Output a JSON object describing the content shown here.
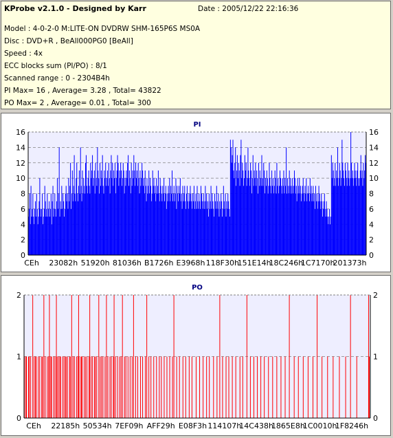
{
  "window": {
    "title": "KProbe v2.1.0 - Designed by Karr",
    "date_text": "Date : 2005/12/22 22:16:36"
  },
  "info_lines": [
    "Model : 4-0-2-0 M:LITE-ON DVDRW SHM-165P6S MS0A",
    "Disc : DVD+R , BeAll000PG0 [BeAll]",
    "Speed : 4x",
    "ECC blocks sum (PI/PO) : 8/1",
    "Scanned range : 0 - 2304B4h",
    "PI Max= 16 , Average= 3.28 , Total= 43822",
    "PO Max= 2 , Average= 0.01 , Total= 300"
  ],
  "colors": {
    "pi_bar": "#0000ff",
    "po_bar": "#ff0000",
    "plot_bg": "#eeeeff",
    "title_color": "#000080"
  },
  "chart_data": [
    {
      "type": "bar",
      "title": "PI",
      "ylim": [
        0,
        16
      ],
      "yticks": [
        0,
        2,
        4,
        6,
        8,
        10,
        12,
        14,
        16
      ],
      "xtick_labels": [
        "CEh",
        "23082h",
        "51920h",
        "81036h",
        "B1726h",
        "E3968h",
        "118F30h",
        "151E14h",
        "18C246h",
        "1C7170h",
        "201373h"
      ],
      "grid": true,
      "legend": "none",
      "values": [
        5,
        6,
        8,
        4,
        9,
        5,
        6,
        8,
        5,
        4,
        6,
        7,
        5,
        8,
        6,
        4,
        5,
        7,
        10,
        6,
        5,
        6,
        8,
        4,
        5,
        6,
        9,
        7,
        5,
        6,
        8,
        5,
        6,
        7,
        5,
        6,
        8,
        4,
        7,
        9,
        5,
        6,
        8,
        6,
        5,
        7,
        10,
        6,
        8,
        14,
        5,
        7,
        6,
        9,
        6,
        8,
        7,
        5,
        6,
        8,
        9,
        7,
        8,
        6,
        10,
        7,
        9,
        12,
        6,
        8,
        11,
        7,
        9,
        13,
        8,
        7,
        10,
        12,
        8,
        7,
        9,
        11,
        8,
        14,
        9,
        7,
        11,
        8,
        10,
        9,
        8,
        12,
        13,
        9,
        8,
        10,
        11,
        9,
        8,
        12,
        10,
        11,
        13,
        9,
        10,
        11,
        8,
        12,
        10,
        9,
        14,
        11,
        10,
        8,
        12,
        9,
        11,
        10,
        13,
        9,
        8,
        11,
        10,
        12,
        9,
        10,
        11,
        9,
        12,
        10,
        8,
        11,
        13,
        10,
        12,
        9,
        11,
        10,
        12,
        8,
        10,
        11,
        13,
        12,
        9,
        11,
        10,
        12,
        11,
        9,
        10,
        12,
        11,
        8,
        10,
        9,
        11,
        10,
        12,
        13,
        9,
        11,
        10,
        8,
        12,
        9,
        11,
        10,
        13,
        11,
        9,
        12,
        10,
        11,
        9,
        12,
        10,
        8,
        11,
        9,
        10,
        12,
        11,
        9,
        10,
        8,
        11,
        9,
        7,
        10,
        8,
        9,
        11,
        8,
        10,
        9,
        7,
        8,
        11,
        9,
        10,
        8,
        9,
        7,
        10,
        8,
        9,
        11,
        8,
        7,
        10,
        9,
        8,
        7,
        9,
        8,
        10,
        7,
        8,
        9,
        6,
        8,
        7,
        9,
        8,
        10,
        7,
        9,
        8,
        11,
        7,
        8,
        9,
        7,
        8,
        10,
        6,
        9,
        8,
        7,
        9,
        8,
        10,
        7,
        8,
        6,
        9,
        7,
        8,
        9,
        7,
        6,
        8,
        9,
        7,
        6,
        8,
        7,
        9,
        8,
        7,
        6,
        8,
        7,
        9,
        6,
        7,
        8,
        6,
        9,
        7,
        6,
        8,
        7,
        6,
        9,
        8,
        7,
        6,
        8,
        7,
        6,
        9,
        7,
        8,
        6,
        7,
        5,
        8,
        6,
        7,
        9,
        6,
        8,
        7,
        6,
        5,
        8,
        7,
        6,
        9,
        7,
        6,
        8,
        5,
        7,
        6,
        8,
        7,
        5,
        6,
        9,
        7,
        6,
        8,
        5,
        7,
        6,
        8,
        7,
        6,
        5,
        15,
        14,
        12,
        13,
        15,
        11,
        10,
        12,
        14,
        9,
        11,
        13,
        10,
        12,
        11,
        9,
        13,
        15,
        10,
        12,
        11,
        9,
        10,
        13,
        11,
        12,
        9,
        10,
        14,
        11,
        10,
        9,
        12,
        11,
        8,
        10,
        13,
        9,
        11,
        10,
        12,
        9,
        11,
        10,
        8,
        12,
        9,
        11,
        10,
        9,
        13,
        10,
        9,
        12,
        11,
        8,
        10,
        9,
        11,
        10,
        8,
        9,
        12,
        10,
        9,
        8,
        11,
        9,
        10,
        8,
        9,
        11,
        10,
        8,
        12,
        9,
        10,
        8,
        9,
        11,
        10,
        9,
        8,
        10,
        9,
        11,
        8,
        10,
        9,
        14,
        8,
        10,
        9,
        8,
        11,
        9,
        10,
        8,
        9,
        10,
        8,
        9,
        11,
        10,
        8,
        9,
        7,
        10,
        8,
        9,
        10,
        8,
        9,
        7,
        8,
        9,
        10,
        8,
        7,
        9,
        8,
        10,
        7,
        8,
        9,
        8,
        7,
        10,
        8,
        9,
        7,
        8,
        9,
        7,
        8,
        6,
        9,
        7,
        8,
        6,
        7,
        9,
        8,
        7,
        6,
        8,
        7,
        5,
        6,
        7,
        8,
        6,
        5,
        7,
        6,
        5,
        4,
        5,
        6,
        4,
        5,
        13,
        10,
        12,
        11,
        9,
        10,
        12,
        9,
        11,
        10,
        14,
        9,
        10,
        12,
        11,
        9,
        10,
        15,
        12,
        11,
        10,
        9,
        12,
        11,
        10,
        9,
        12,
        10,
        11,
        9,
        10,
        16,
        12,
        10,
        11,
        9,
        10,
        12,
        11,
        10,
        9,
        11,
        12,
        10,
        9,
        10,
        11,
        13,
        10,
        11,
        9,
        12,
        10,
        11,
        13,
        12
      ]
    },
    {
      "type": "bar",
      "title": "PO",
      "ylim": [
        0,
        2
      ],
      "yticks": [
        0,
        1,
        2
      ],
      "xtick_labels": [
        "CEh",
        "22185h",
        "50534h",
        "7EF09h",
        "AFF29h",
        "E08F3h",
        "114107h",
        "14C438h",
        "1865E8h",
        "1C0010h",
        "1F8246h"
      ],
      "grid": true,
      "legend": "none",
      "values": [
        1,
        0,
        1,
        1,
        0,
        0,
        1,
        1,
        0,
        1,
        0,
        0,
        2,
        0,
        1,
        0,
        1,
        1,
        0,
        0,
        1,
        0,
        1,
        0,
        0,
        1,
        1,
        0,
        2,
        0,
        1,
        0,
        0,
        1,
        0,
        1,
        2,
        0,
        1,
        1,
        0,
        0,
        1,
        0,
        1,
        0,
        2,
        1,
        0,
        1,
        0,
        1,
        1,
        0,
        0,
        1,
        0,
        1,
        0,
        1,
        1,
        0,
        1,
        0,
        0,
        1,
        1,
        0,
        2,
        0,
        1,
        0,
        1,
        0,
        0,
        1,
        0,
        1,
        2,
        0,
        1,
        0,
        1,
        1,
        0,
        0,
        1,
        0,
        1,
        0,
        1,
        0,
        0,
        1,
        2,
        0,
        1,
        0,
        1,
        0,
        0,
        1,
        1,
        0,
        1,
        0,
        0,
        2,
        0,
        1,
        0,
        1,
        0,
        1,
        0,
        0,
        1,
        0,
        2,
        0,
        1,
        0,
        0,
        1,
        0,
        1,
        0,
        0,
        1,
        2,
        0,
        1,
        0,
        0,
        1,
        0,
        0,
        1,
        0,
        1,
        0,
        2,
        0,
        0,
        1,
        0,
        1,
        0,
        0,
        1,
        0,
        0,
        1,
        0,
        0,
        1,
        0,
        2,
        0,
        0,
        1,
        0,
        0,
        1,
        0,
        0,
        0,
        1,
        0,
        0,
        1,
        0,
        0,
        0,
        1,
        0,
        2,
        0,
        0,
        1,
        0,
        0,
        1,
        0,
        0,
        0,
        1,
        0,
        0,
        0,
        1,
        0,
        0,
        0,
        1,
        0,
        0,
        1,
        0,
        0,
        0,
        1,
        0,
        0,
        0,
        1,
        0,
        0,
        0,
        1,
        0,
        0,
        0,
        1,
        0,
        2,
        0,
        0,
        0,
        1,
        0,
        0,
        0,
        1,
        0,
        0,
        0,
        0,
        1,
        0,
        0,
        0,
        1,
        0,
        0,
        0,
        0,
        1,
        0,
        0,
        0,
        1,
        0,
        0,
        0,
        0,
        0,
        1,
        0,
        0,
        0,
        0,
        1,
        0,
        0,
        0,
        0,
        1,
        0,
        0,
        0,
        0,
        1,
        0,
        0,
        0,
        1,
        0,
        0,
        0,
        0,
        0,
        1,
        0,
        0,
        0,
        0,
        1,
        0,
        0,
        0,
        2,
        0,
        0,
        0,
        1,
        0,
        0,
        0,
        0,
        1,
        0,
        0,
        0,
        1,
        0,
        0,
        0,
        0,
        1,
        0,
        0,
        0,
        0,
        1,
        0,
        0,
        0,
        0,
        0,
        1,
        0,
        0,
        0,
        1,
        0,
        0,
        0,
        0,
        0,
        2,
        0,
        0,
        0,
        0,
        1,
        0,
        0,
        0,
        0,
        1,
        0,
        0,
        0,
        0,
        1,
        0,
        0,
        0,
        0,
        1,
        0,
        0,
        0,
        0,
        1,
        0,
        0,
        0,
        0,
        0,
        1,
        0,
        0,
        0,
        0,
        0,
        1,
        0,
        0,
        0,
        0,
        0,
        1,
        0,
        0,
        0,
        0,
        0,
        1,
        0,
        0,
        0,
        0,
        0,
        1,
        0,
        0,
        0,
        0,
        0,
        2,
        0,
        0,
        0,
        0,
        0,
        0,
        1,
        0,
        0,
        0,
        0,
        0,
        1,
        0,
        0,
        0,
        0,
        0,
        0,
        1,
        0,
        0,
        0,
        0,
        0,
        0,
        1,
        0,
        0,
        0,
        0,
        0,
        0,
        1,
        0,
        0,
        0,
        0,
        0,
        2,
        0,
        0,
        0,
        0,
        0,
        0,
        1,
        0,
        0,
        0,
        0,
        0,
        0,
        0,
        1,
        0,
        0,
        0,
        0,
        0,
        0,
        0,
        1,
        0,
        0,
        0,
        0,
        0,
        0,
        0,
        0,
        1,
        0,
        0,
        0,
        0,
        0,
        0,
        0,
        0,
        1,
        0,
        0,
        0,
        0,
        0,
        0,
        2,
        0,
        0,
        0,
        0,
        0,
        0,
        0,
        0,
        1,
        0,
        0,
        0,
        0,
        0,
        0,
        0,
        0,
        0,
        0,
        0,
        0,
        0,
        0,
        0,
        0,
        2,
        1,
        0
      ]
    }
  ]
}
